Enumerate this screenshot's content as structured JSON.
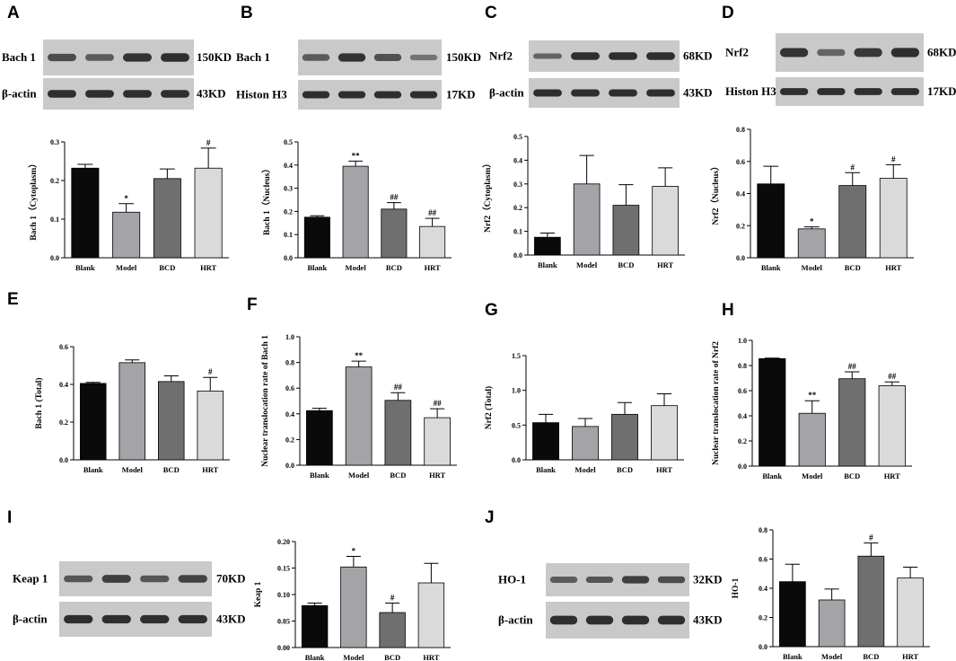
{
  "colors": {
    "blank": "#0a0a0a",
    "model": "#a3a3a8",
    "bcd": "#6f6f6f",
    "hrt": "#dadada",
    "blot_bg": "#c9c9c9",
    "band": "#262626"
  },
  "chart_data": [
    {
      "panel": "A",
      "type": "bar",
      "ylabel": "Bach 1（Cytoplasm）",
      "ylim": [
        0,
        0.3
      ],
      "ticks": [
        "0.0",
        "0.1",
        "0.2",
        "0.3"
      ],
      "categories": [
        "Blank",
        "Model",
        "BCD",
        "HRT"
      ],
      "values": [
        0.232,
        0.118,
        0.205,
        0.232
      ],
      "errors": [
        0.01,
        0.022,
        0.025,
        0.052
      ],
      "sig": [
        "",
        "*",
        "",
        "#"
      ]
    },
    {
      "panel": "B",
      "type": "bar",
      "ylabel": "Bach 1（Nucleus）",
      "ylim": [
        0,
        0.5
      ],
      "ticks": [
        "0.0",
        "0.1",
        "0.2",
        "0.3",
        "0.4",
        "0.5"
      ],
      "categories": [
        "Blank",
        "Model",
        "BCD",
        "HRT"
      ],
      "values": [
        0.175,
        0.395,
        0.21,
        0.135
      ],
      "errors": [
        0.006,
        0.022,
        0.028,
        0.035
      ],
      "sig": [
        "",
        "**",
        "##",
        "##"
      ]
    },
    {
      "panel": "C",
      "type": "bar",
      "ylabel": "Nrf2（Cytoplasm）",
      "ylim": [
        0,
        0.5
      ],
      "ticks": [
        "0.0",
        "0.1",
        "0.2",
        "0.3",
        "0.4",
        "0.5"
      ],
      "categories": [
        "Blank",
        "Model",
        "BCD",
        "HRT"
      ],
      "values": [
        0.075,
        0.3,
        0.21,
        0.29
      ],
      "errors": [
        0.018,
        0.12,
        0.087,
        0.078
      ],
      "sig": [
        "",
        "",
        "",
        ""
      ]
    },
    {
      "panel": "D",
      "type": "bar",
      "ylabel": "Nrf2（Nucleus）",
      "ylim": [
        0,
        0.8
      ],
      "ticks": [
        "0.0",
        "0.2",
        "0.4",
        "0.6",
        "0.8"
      ],
      "categories": [
        "Blank",
        "Model",
        "BCD",
        "HRT"
      ],
      "values": [
        0.46,
        0.18,
        0.45,
        0.495
      ],
      "errors": [
        0.11,
        0.012,
        0.08,
        0.085
      ],
      "sig": [
        "",
        "*",
        "#",
        "#"
      ]
    },
    {
      "panel": "E",
      "type": "bar",
      "ylabel": "Bach 1 (Total)",
      "ylim": [
        0,
        0.6
      ],
      "ticks": [
        "0.0",
        "0.2",
        "0.4",
        "0.6"
      ],
      "categories": [
        "Blank",
        "Model",
        "BCD",
        "HRT"
      ],
      "values": [
        0.405,
        0.515,
        0.415,
        0.365
      ],
      "errors": [
        0.006,
        0.015,
        0.03,
        0.072
      ],
      "sig": [
        "",
        "",
        "",
        "#"
      ]
    },
    {
      "panel": "F",
      "type": "bar",
      "ylabel": "Nuclear translocation rate of Bach 1",
      "ylim": [
        0,
        1.0
      ],
      "ticks": [
        "0.0",
        "0.2",
        "0.4",
        "0.6",
        "0.8",
        "1.0"
      ],
      "categories": [
        "Blank",
        "Model",
        "BCD",
        "HRT"
      ],
      "values": [
        0.425,
        0.765,
        0.505,
        0.37
      ],
      "errors": [
        0.018,
        0.045,
        0.06,
        0.07
      ],
      "sig": [
        "",
        "**",
        "##",
        "##"
      ]
    },
    {
      "panel": "G",
      "type": "bar",
      "ylabel": "Nrf2 (Total)",
      "ylim": [
        0,
        1.5
      ],
      "ticks": [
        "0.0",
        "0.5",
        "1.0",
        "1.5"
      ],
      "categories": [
        "Blank",
        "Model",
        "BCD",
        "HRT"
      ],
      "values": [
        0.535,
        0.48,
        0.655,
        0.78
      ],
      "errors": [
        0.12,
        0.115,
        0.17,
        0.17
      ],
      "sig": [
        "",
        "",
        "",
        ""
      ]
    },
    {
      "panel": "H",
      "type": "bar",
      "ylabel": "Nuclear translocation rate of Nrf2",
      "ylim": [
        0,
        1.0
      ],
      "ticks": [
        "0.0",
        "0.2",
        "0.4",
        "0.6",
        "0.8",
        "1.0"
      ],
      "categories": [
        "Blank",
        "Model",
        "BCD",
        "HRT"
      ],
      "values": [
        0.855,
        0.42,
        0.695,
        0.64
      ],
      "errors": [
        0.004,
        0.1,
        0.055,
        0.03
      ],
      "sig": [
        "",
        "**",
        "##",
        "##"
      ]
    },
    {
      "panel": "I",
      "type": "bar",
      "ylabel": "Keap 1",
      "ylim": [
        0,
        0.2
      ],
      "ticks": [
        "0.00",
        "0.05",
        "0.10",
        "0.15",
        "0.20"
      ],
      "categories": [
        "Blank",
        "Model",
        "BCD",
        "HRT"
      ],
      "values": [
        0.079,
        0.152,
        0.066,
        0.122
      ],
      "errors": [
        0.005,
        0.02,
        0.018,
        0.037
      ],
      "sig": [
        "",
        "*",
        "#",
        ""
      ]
    },
    {
      "panel": "J",
      "type": "bar",
      "ylabel": "HO-1",
      "ylim": [
        0,
        0.8
      ],
      "ticks": [
        "0.0",
        "0.2",
        "0.4",
        "0.6",
        "0.8"
      ],
      "categories": [
        "Blank",
        "Model",
        "BCD",
        "HRT"
      ],
      "values": [
        0.445,
        0.32,
        0.62,
        0.47
      ],
      "errors": [
        0.12,
        0.075,
        0.09,
        0.075
      ],
      "sig": [
        "",
        "",
        "#",
        ""
      ]
    }
  ],
  "blots": [
    {
      "panel": "A",
      "rows": [
        {
          "protein": "Bach 1",
          "size": "150KD"
        },
        {
          "protein": "β-actin",
          "size": "43KD"
        }
      ]
    },
    {
      "panel": "B",
      "rows": [
        {
          "protein": "Bach 1",
          "size": "150KD"
        },
        {
          "protein": "Histon H3",
          "size": "17KD"
        }
      ]
    },
    {
      "panel": "C",
      "rows": [
        {
          "protein": "Nrf2",
          "size": "68KD"
        },
        {
          "protein": "β-actin",
          "size": "43KD"
        }
      ]
    },
    {
      "panel": "D",
      "rows": [
        {
          "protein": "Nrf2",
          "size": "68KD"
        },
        {
          "protein": "Histon H3",
          "size": "17KD"
        }
      ]
    },
    {
      "panel": "I",
      "rows": [
        {
          "protein": "Keap 1",
          "size": "70KD"
        },
        {
          "protein": "β-actin",
          "size": "43KD"
        }
      ]
    },
    {
      "panel": "J",
      "rows": [
        {
          "protein": "HO-1",
          "size": "32KD"
        },
        {
          "protein": "β-actin",
          "size": "43KD"
        }
      ]
    }
  ]
}
